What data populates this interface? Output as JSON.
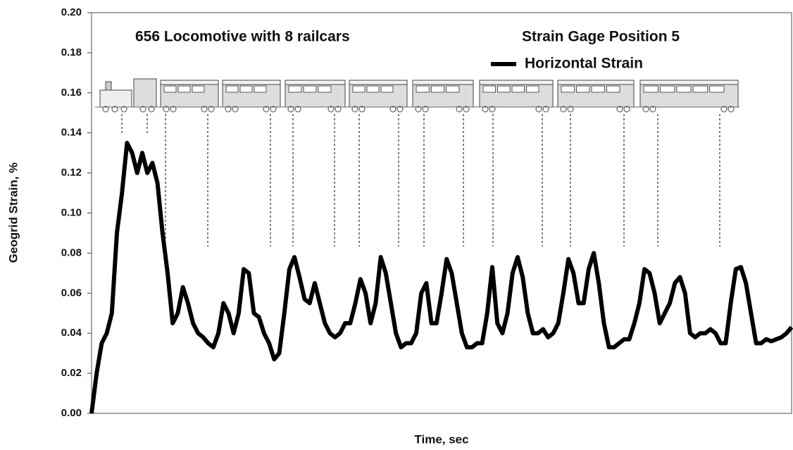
{
  "chart_data": {
    "type": "line",
    "annotations": [
      "656 Locomotive with 8 railcars",
      "Strain Gage Position 5"
    ],
    "y_label": "Geogrid Strain, %",
    "x_label": "Time, sec",
    "ylim": [
      0,
      0.2
    ],
    "yticks": [
      {
        "value": 0,
        "label": "0.00"
      },
      {
        "value": 0.02,
        "label": "0.02"
      },
      {
        "value": 0.04,
        "label": "0.04"
      },
      {
        "value": 0.06,
        "label": "0.06"
      },
      {
        "value": 0.08,
        "label": "0.08"
      },
      {
        "value": 0.1,
        "label": "0.10"
      },
      {
        "value": 0.12,
        "label": "0.12"
      },
      {
        "value": 0.14,
        "label": "0.14"
      },
      {
        "value": 0.16,
        "label": "0.16"
      },
      {
        "value": 0.18,
        "label": "0.18"
      },
      {
        "value": 0.2,
        "label": "0.20"
      }
    ],
    "series": [
      {
        "name": "Horizontal Strain",
        "color": "#000000",
        "values": [
          0,
          0.02,
          0.035,
          0.04,
          0.05,
          0.09,
          0.11,
          0.135,
          0.13,
          0.12,
          0.13,
          0.12,
          0.125,
          0.115,
          0.09,
          0.07,
          0.045,
          0.05,
          0.063,
          0.055,
          0.045,
          0.04,
          0.038,
          0.035,
          0.033,
          0.04,
          0.055,
          0.05,
          0.04,
          0.05,
          0.072,
          0.07,
          0.05,
          0.048,
          0.04,
          0.035,
          0.027,
          0.03,
          0.05,
          0.072,
          0.078,
          0.068,
          0.057,
          0.055,
          0.065,
          0.055,
          0.045,
          0.04,
          0.038,
          0.04,
          0.045,
          0.045,
          0.055,
          0.067,
          0.06,
          0.045,
          0.055,
          0.078,
          0.07,
          0.055,
          0.04,
          0.033,
          0.035,
          0.035,
          0.04,
          0.06,
          0.065,
          0.045,
          0.045,
          0.06,
          0.077,
          0.07,
          0.055,
          0.04,
          0.033,
          0.033,
          0.035,
          0.035,
          0.05,
          0.073,
          0.045,
          0.04,
          0.05,
          0.07,
          0.078,
          0.068,
          0.05,
          0.04,
          0.04,
          0.042,
          0.038,
          0.04,
          0.045,
          0.06,
          0.077,
          0.07,
          0.055,
          0.055,
          0.072,
          0.08,
          0.065,
          0.045,
          0.033,
          0.033,
          0.035,
          0.037,
          0.037,
          0.045,
          0.055,
          0.072,
          0.07,
          0.06,
          0.045,
          0.05,
          0.055,
          0.065,
          0.068,
          0.06,
          0.04,
          0.038,
          0.04,
          0.04,
          0.042,
          0.04,
          0.035,
          0.035,
          0.055,
          0.072,
          0.073,
          0.065,
          0.05,
          0.035,
          0.035,
          0.037,
          0.036,
          0.037,
          0.038,
          0.04,
          0.043
        ]
      }
    ]
  }
}
